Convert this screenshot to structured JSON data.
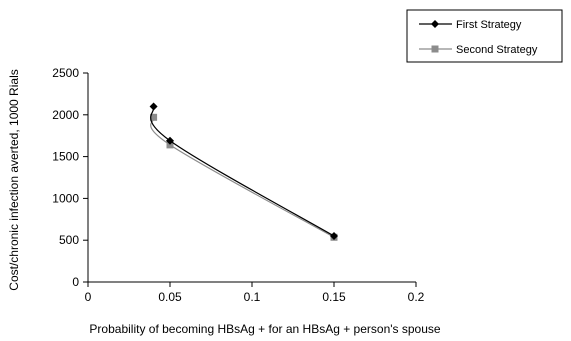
{
  "chart_data": {
    "type": "line",
    "title": "",
    "xlabel": "Probability of becoming HBsAg + for an HBsAg + person's spouse",
    "ylabel": "Cost/chronic infection averted, 1000 Rials",
    "xlim": [
      0,
      0.2
    ],
    "ylim": [
      0,
      2500
    ],
    "xticks": [
      0,
      0.05,
      0.1,
      0.15,
      0.2
    ],
    "xtick_labels": [
      "0",
      "0.05",
      "0.1",
      "0.15",
      "0.2"
    ],
    "yticks": [
      0,
      500,
      1000,
      1500,
      2000,
      2500
    ],
    "ytick_labels": [
      "0",
      "500",
      "1000",
      "1500",
      "2000",
      "2500"
    ],
    "grid": false,
    "legend_position": "top-right",
    "series": [
      {
        "name": "First Strategy",
        "marker": "diamond",
        "color": "#000000",
        "x": [
          0.04,
          0.05,
          0.15
        ],
        "y": [
          2100,
          1690,
          550
        ]
      },
      {
        "name": "Second Strategy",
        "marker": "square",
        "color": "#8c8c8c",
        "x": [
          0.04,
          0.05,
          0.15
        ],
        "y": [
          1970,
          1640,
          535
        ]
      }
    ]
  }
}
